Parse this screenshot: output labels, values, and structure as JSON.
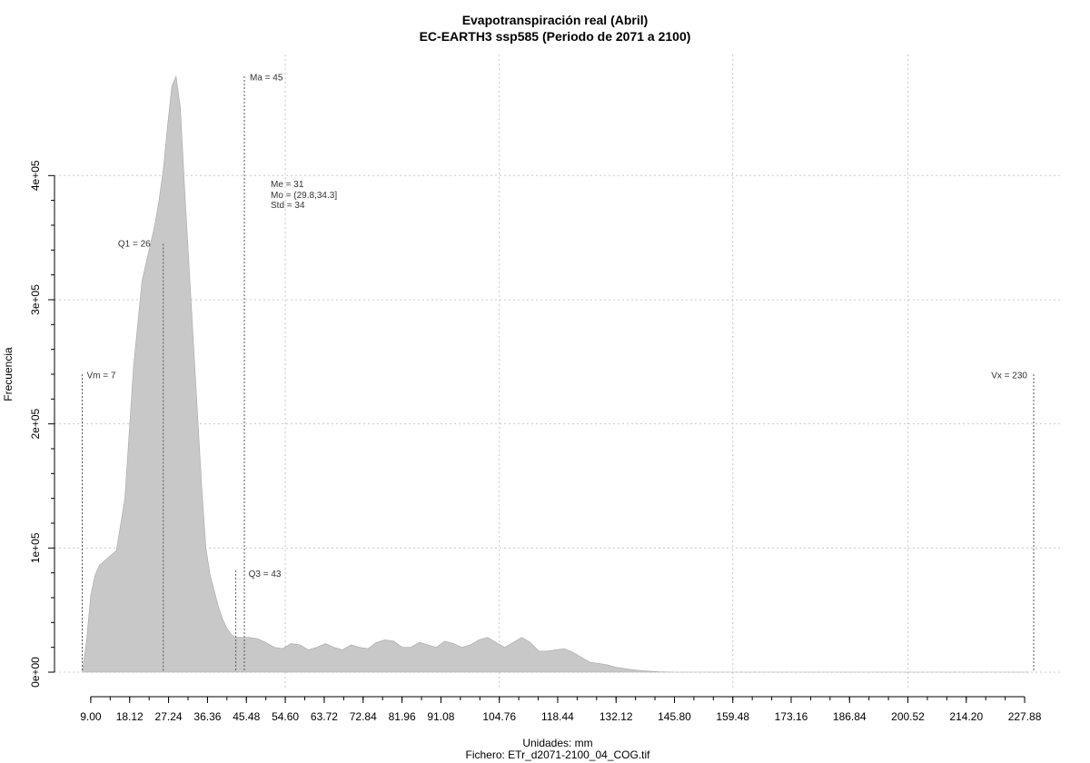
{
  "chart_data": {
    "type": "area",
    "title": "Evapotranspiración real (Abril)",
    "subtitle": "EC-EARTH3 ssp585 (Periodo de 2071 a 2100)",
    "xlabel": "Unidades: mm",
    "ylabel": "Frecuencia",
    "footer": "Fichero: ETr_d2071-2100_04_COG.tif",
    "xlim": [
      7,
      230
    ],
    "ylim": [
      0,
      480000
    ],
    "x_ticks": [
      "9.00",
      "18.12",
      "27.24",
      "36.36",
      "45.48",
      "54.60",
      "63.72",
      "72.84",
      "81.96",
      "91.08",
      "104.76",
      "118.44",
      "132.12",
      "145.80",
      "159.48",
      "173.16",
      "186.84",
      "200.52",
      "214.20",
      "227.88"
    ],
    "x_tick_values": [
      9.0,
      18.12,
      27.24,
      36.36,
      45.48,
      54.6,
      63.72,
      72.84,
      81.96,
      91.08,
      104.76,
      118.44,
      132.12,
      145.8,
      159.48,
      173.16,
      186.84,
      200.52,
      214.2,
      227.88
    ],
    "x_minor_step": 4.56,
    "y_ticks": [
      "0e+00",
      "1e+05",
      "2e+05",
      "3e+05",
      "4e+05"
    ],
    "y_tick_values": [
      0,
      100000,
      200000,
      300000,
      400000
    ],
    "grid": true,
    "fill_color": "#c8c8c8",
    "grid_color": "#c8c8c8",
    "series": [
      {
        "x": [
          7,
          8,
          9,
          10,
          11,
          13,
          15,
          17,
          19,
          21,
          23,
          24,
          25,
          26,
          27,
          28,
          29,
          30,
          31,
          32,
          33,
          34,
          35,
          36,
          37,
          38,
          39,
          40,
          41,
          42,
          43,
          44,
          45,
          46,
          48,
          50,
          52,
          54,
          56,
          58,
          60,
          62,
          64,
          66,
          68,
          70,
          72,
          74,
          76,
          78,
          80,
          82,
          84,
          86,
          88,
          90,
          92,
          94,
          96,
          98,
          100,
          102,
          104,
          106,
          108,
          110,
          112,
          114,
          116,
          118,
          120,
          122,
          124,
          126,
          128,
          130,
          132,
          134,
          136,
          138,
          140,
          142,
          144,
          146,
          148,
          150,
          152,
          154,
          156,
          158,
          160,
          165,
          170,
          175,
          180,
          190,
          200,
          210,
          220,
          229
        ],
        "y": [
          0,
          25000,
          62000,
          78000,
          86000,
          92000,
          98000,
          140000,
          245000,
          315000,
          345000,
          360000,
          380000,
          405000,
          440000,
          472000,
          480000,
          455000,
          390000,
          330000,
          270000,
          210000,
          150000,
          100000,
          78000,
          65000,
          52000,
          42000,
          35000,
          30000,
          28000,
          28000,
          28000,
          28000,
          27000,
          24000,
          20000,
          19000,
          23000,
          22000,
          18000,
          20000,
          23000,
          20000,
          18000,
          22000,
          20000,
          19000,
          24000,
          26000,
          25000,
          20000,
          20000,
          24000,
          22000,
          20000,
          25000,
          23000,
          20000,
          22000,
          26000,
          28000,
          24000,
          20000,
          24000,
          28000,
          24000,
          17000,
          17000,
          18000,
          19000,
          16000,
          12000,
          8000,
          7000,
          6000,
          4000,
          3000,
          2000,
          1200,
          800,
          300,
          100,
          0,
          0,
          0,
          0,
          0,
          0,
          0,
          0,
          0,
          0,
          0,
          0,
          0,
          0,
          0,
          0,
          0
        ]
      }
    ],
    "annotations": [
      {
        "label": "Vm = 7",
        "x": 7,
        "line_top": 240000,
        "text_y": 239000,
        "align": "start",
        "offset": 5
      },
      {
        "label": "Q1 = 26",
        "x": 26,
        "line_top": 345000,
        "text_y": 345000,
        "align": "end",
        "offset": -14
      },
      {
        "label": "Ma = 45",
        "x": 45,
        "line_top": 480000,
        "text_y": 479000,
        "align": "start",
        "offset": 6
      },
      {
        "label": "Q3 = 43",
        "x": 43,
        "line_top": 82000,
        "text_y": 79000,
        "align": "start",
        "offset": 14
      },
      {
        "label": "Vx = 230",
        "x": 230,
        "line_top": 240000,
        "text_y": 239000,
        "align": "end",
        "offset": -7
      }
    ],
    "stats_block": [
      "Me = 31",
      "Mo = (29.8,34.3]",
      "Std = 34"
    ]
  }
}
